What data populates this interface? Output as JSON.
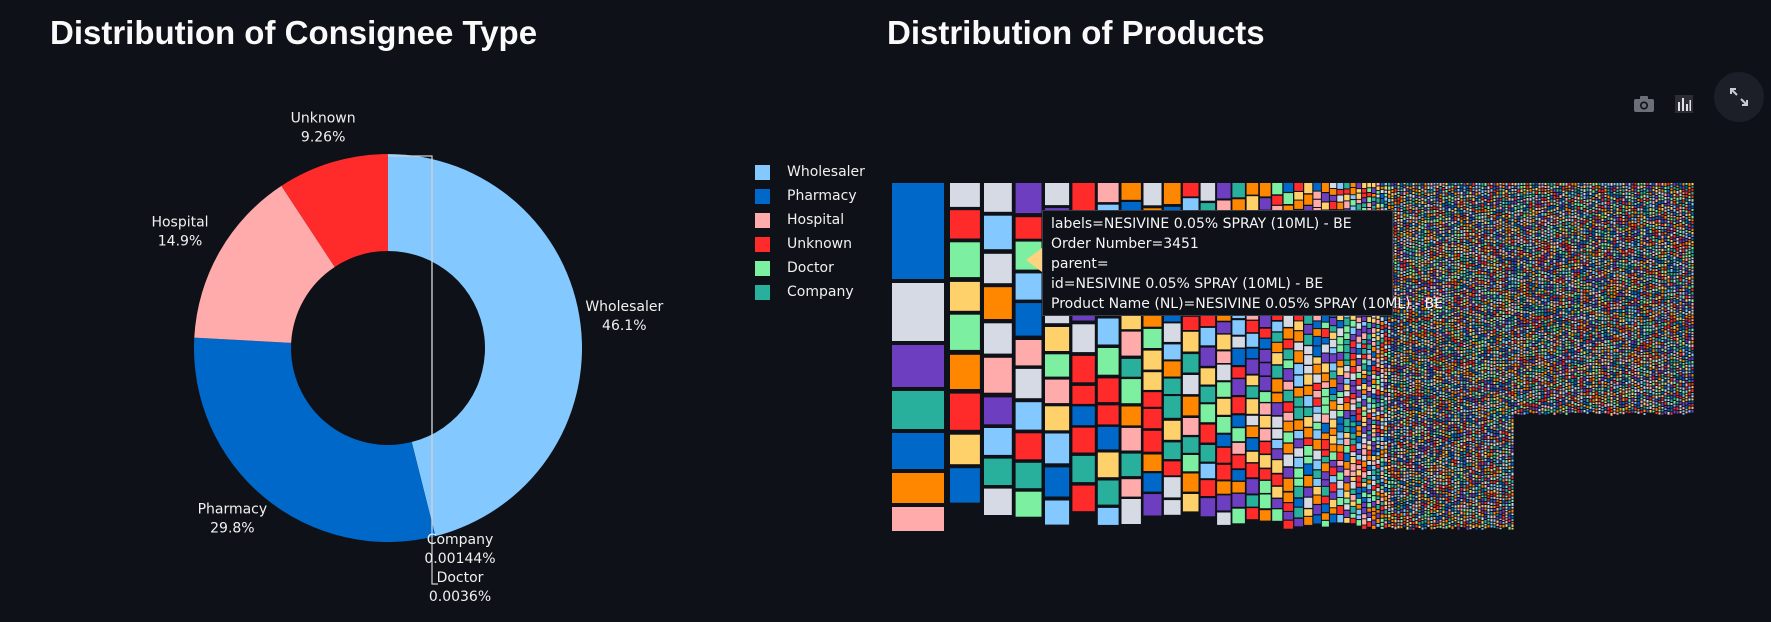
{
  "left_panel": {
    "title": "Distribution of Consignee Type"
  },
  "right_panel": {
    "title": "Distribution of Products"
  },
  "chart_data": [
    {
      "type": "pie",
      "hole": 0.5,
      "legend_placement": "right",
      "sort": "descending, clockwise from top",
      "slices": [
        {
          "label": "Wholesaler",
          "percent": 46.1,
          "percent_text": "46.1%",
          "color": "#83c9ff"
        },
        {
          "label": "Pharmacy",
          "percent": 29.8,
          "percent_text": "29.8%",
          "color": "#0068c9"
        },
        {
          "label": "Hospital",
          "percent": 14.9,
          "percent_text": "14.9%",
          "color": "#ffabab"
        },
        {
          "label": "Unknown",
          "percent": 9.26,
          "percent_text": "9.26%",
          "color": "#ff2b2b"
        },
        {
          "label": "Doctor",
          "percent": 0.0036,
          "percent_text": "0.0036%",
          "color": "#7defa1"
        },
        {
          "label": "Company",
          "percent": 0.00144,
          "percent_text": "0.00144%",
          "color": "#29b09d"
        }
      ]
    },
    {
      "type": "treemap",
      "description_of_data": "Product names sized by Order Number count",
      "palette": [
        "#0068c9",
        "#83c9ff",
        "#ff2b2b",
        "#ffabab",
        "#29b09d",
        "#7defa1",
        "#ff8700",
        "#ffd16a",
        "#6d3fc0",
        "#d5dae5"
      ],
      "hover": {
        "labels": "labels=NESIVINE 0.05% SPRAY (10ML) - BE",
        "order_number": "Order Number=3451",
        "parent": "parent=",
        "id": "id=NESIVINE 0.05% SPRAY (10ML) - BE",
        "product_name": "Product Name (NL)=NESIVINE 0.05% SPRAY (10ML) - BE"
      }
    }
  ],
  "toolbar": {
    "camera_icon": "camera-icon",
    "chart_icon": "bar-chart-icon",
    "fullscreen_icon": "fullscreen-expand-icon"
  }
}
